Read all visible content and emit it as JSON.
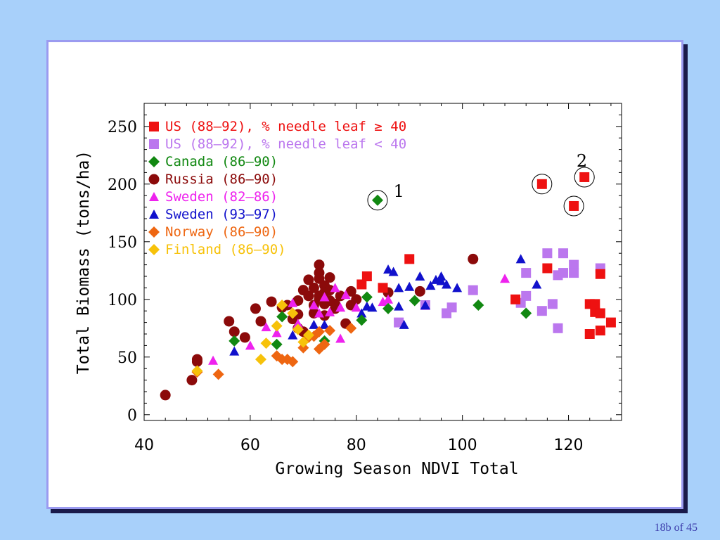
{
  "slide": {
    "page_label": "18b of 45"
  },
  "colors": {
    "background": "#a8d0fa",
    "card": "#ffffff",
    "card_border": "#9b9bf0"
  },
  "chart_data": {
    "type": "scatter",
    "xlabel": "Growing Season NDVI Total",
    "ylabel": "Total Biomass (tons/ha)",
    "xlim": [
      40,
      130
    ],
    "ylim": [
      -5,
      270
    ],
    "xticks": [
      40,
      60,
      80,
      100,
      120
    ],
    "yticks": [
      0,
      50,
      100,
      150,
      200,
      250
    ],
    "legend_position": "top-left",
    "series": [
      {
        "name": "US (88–92), % needle leaf ≥ 40",
        "color": "#ee1111",
        "marker": "square",
        "points": [
          [
            81,
            113
          ],
          [
            82,
            120
          ],
          [
            85,
            110
          ],
          [
            90,
            135
          ],
          [
            110,
            100
          ],
          [
            115,
            200
          ],
          [
            116,
            127
          ],
          [
            121,
            181
          ],
          [
            123,
            206
          ],
          [
            124,
            70
          ],
          [
            124,
            96
          ],
          [
            125,
            96
          ],
          [
            125,
            89
          ],
          [
            126,
            88
          ],
          [
            126,
            122
          ],
          [
            126,
            73
          ],
          [
            128,
            80
          ]
        ]
      },
      {
        "name": "US (88–92), % needle leaf < 40",
        "color": "#bb77ee",
        "marker": "square",
        "points": [
          [
            88,
            80
          ],
          [
            93,
            95
          ],
          [
            97,
            88
          ],
          [
            98,
            93
          ],
          [
            102,
            108
          ],
          [
            111,
            97
          ],
          [
            112,
            103
          ],
          [
            112,
            123
          ],
          [
            115,
            90
          ],
          [
            116,
            140
          ],
          [
            117,
            96
          ],
          [
            118,
            121
          ],
          [
            118,
            75
          ],
          [
            119,
            140
          ],
          [
            119,
            123
          ],
          [
            121,
            130
          ],
          [
            121,
            123
          ],
          [
            126,
            127
          ]
        ]
      },
      {
        "name": "Canada (86–90)",
        "color": "#118811",
        "marker": "diamond",
        "points": [
          [
            57,
            64
          ],
          [
            65,
            61
          ],
          [
            66,
            85
          ],
          [
            74,
            64
          ],
          [
            81,
            82
          ],
          [
            82,
            102
          ],
          [
            84,
            186
          ],
          [
            86,
            92
          ],
          [
            91,
            99
          ],
          [
            103,
            95
          ],
          [
            112,
            88
          ]
        ]
      },
      {
        "name": "Russia  (86–90)",
        "color": "#8b0a0a",
        "marker": "circle",
        "points": [
          [
            44,
            17
          ],
          [
            49,
            30
          ],
          [
            50,
            46
          ],
          [
            50,
            48
          ],
          [
            56,
            81
          ],
          [
            57,
            72
          ],
          [
            59,
            67
          ],
          [
            61,
            92
          ],
          [
            62,
            81
          ],
          [
            64,
            98
          ],
          [
            66,
            93
          ],
          [
            67,
            95
          ],
          [
            68,
            83
          ],
          [
            69,
            87
          ],
          [
            69,
            99
          ],
          [
            69,
            75
          ],
          [
            70,
            108
          ],
          [
            70,
            72
          ],
          [
            71,
            117
          ],
          [
            71,
            103
          ],
          [
            72,
            95
          ],
          [
            72,
            110
          ],
          [
            72,
            88
          ],
          [
            73,
            130
          ],
          [
            73,
            123
          ],
          [
            73,
            103
          ],
          [
            73,
            100
          ],
          [
            73,
            118
          ],
          [
            74,
            112
          ],
          [
            74,
            96
          ],
          [
            74,
            106
          ],
          [
            74,
            86
          ],
          [
            75,
            119
          ],
          [
            75,
            99
          ],
          [
            75,
            108
          ],
          [
            76,
            96
          ],
          [
            76,
            92
          ],
          [
            77,
            103
          ],
          [
            78,
            79
          ],
          [
            79,
            95
          ],
          [
            79,
            107
          ],
          [
            80,
            100
          ],
          [
            86,
            106
          ],
          [
            92,
            107
          ],
          [
            102,
            135
          ]
        ]
      },
      {
        "name": "Sweden (82–86)",
        "color": "#ee22ee",
        "marker": "triangle",
        "points": [
          [
            53,
            47
          ],
          [
            60,
            60
          ],
          [
            63,
            76
          ],
          [
            65,
            71
          ],
          [
            68,
            97
          ],
          [
            69,
            79
          ],
          [
            72,
            95
          ],
          [
            73,
            88
          ],
          [
            74,
            102
          ],
          [
            75,
            89
          ],
          [
            76,
            110
          ],
          [
            77,
            66
          ],
          [
            77,
            93
          ],
          [
            78,
            104
          ],
          [
            80,
            93
          ],
          [
            85,
            98
          ],
          [
            86,
            100
          ],
          [
            108,
            118
          ]
        ]
      },
      {
        "name": "Sweden (93–97)",
        "color": "#1111cc",
        "marker": "triangle",
        "points": [
          [
            57,
            55
          ],
          [
            68,
            69
          ],
          [
            72,
            78
          ],
          [
            74,
            78
          ],
          [
            81,
            88
          ],
          [
            82,
            94
          ],
          [
            83,
            93
          ],
          [
            86,
            126
          ],
          [
            87,
            124
          ],
          [
            88,
            94
          ],
          [
            88,
            110
          ],
          [
            89,
            78
          ],
          [
            90,
            111
          ],
          [
            92,
            120
          ],
          [
            93,
            95
          ],
          [
            94,
            112
          ],
          [
            95,
            117
          ],
          [
            96,
            120
          ],
          [
            96,
            116
          ],
          [
            97,
            113
          ],
          [
            99,
            110
          ],
          [
            111,
            135
          ],
          [
            114,
            113
          ]
        ]
      },
      {
        "name": "Norway (86–90)",
        "color": "#ee6611",
        "marker": "diamond",
        "points": [
          [
            50,
            37
          ],
          [
            54,
            35
          ],
          [
            65,
            51
          ],
          [
            66,
            48
          ],
          [
            67,
            48
          ],
          [
            68,
            46
          ],
          [
            70,
            58
          ],
          [
            71,
            67
          ],
          [
            72,
            68
          ],
          [
            73,
            72
          ],
          [
            73,
            57
          ],
          [
            74,
            61
          ],
          [
            75,
            73
          ],
          [
            79,
            75
          ]
        ]
      },
      {
        "name": "Finland (86–90)",
        "color": "#f7c20a",
        "marker": "diamond",
        "points": [
          [
            50,
            38
          ],
          [
            62,
            48
          ],
          [
            63,
            62
          ],
          [
            65,
            77
          ],
          [
            66,
            95
          ],
          [
            68,
            88
          ],
          [
            69,
            74
          ],
          [
            70,
            63
          ],
          [
            71,
            69
          ]
        ]
      }
    ],
    "annotations": [
      {
        "text": "1",
        "x": 87,
        "y": 189
      },
      {
        "text": "2",
        "x": 121.5,
        "y": 215
      }
    ],
    "circled_points": [
      [
        84,
        186
      ],
      [
        115,
        200
      ],
      [
        121,
        181
      ],
      [
        123,
        206
      ]
    ]
  }
}
